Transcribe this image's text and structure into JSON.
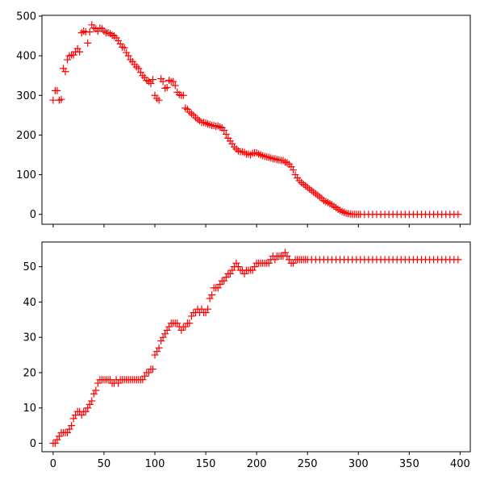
{
  "colors": {
    "marker": "#ff0000",
    "axes": "#000000",
    "background": "#ffffff"
  },
  "chart_data": [
    {
      "type": "scatter",
      "marker": "+",
      "grid": false,
      "xlim": [
        -11,
        410
      ],
      "ylim": [
        -25,
        502
      ],
      "xticks": [
        0,
        50,
        100,
        150,
        200,
        250,
        300,
        350,
        400
      ],
      "xtick_labels_visible": false,
      "yticks": [
        0,
        100,
        200,
        300,
        400,
        500
      ],
      "ytick_labels": [
        "0",
        "100",
        "200",
        "300",
        "400",
        "500"
      ],
      "points": [
        [
          0,
          288
        ],
        [
          2,
          312
        ],
        [
          4,
          312
        ],
        [
          6,
          288
        ],
        [
          8,
          290
        ],
        [
          10,
          368
        ],
        [
          12,
          360
        ],
        [
          14,
          390
        ],
        [
          16,
          400
        ],
        [
          18,
          402
        ],
        [
          20,
          402
        ],
        [
          22,
          410
        ],
        [
          24,
          418
        ],
        [
          26,
          410
        ],
        [
          28,
          458
        ],
        [
          30,
          462
        ],
        [
          32,
          460
        ],
        [
          34,
          432
        ],
        [
          36,
          460
        ],
        [
          38,
          478
        ],
        [
          40,
          470
        ],
        [
          42,
          468
        ],
        [
          44,
          462
        ],
        [
          46,
          470
        ],
        [
          48,
          468
        ],
        [
          50,
          462
        ],
        [
          52,
          458
        ],
        [
          54,
          458
        ],
        [
          56,
          456
        ],
        [
          58,
          452
        ],
        [
          60,
          450
        ],
        [
          62,
          445
        ],
        [
          64,
          438
        ],
        [
          66,
          430
        ],
        [
          68,
          422
        ],
        [
          70,
          420
        ],
        [
          72,
          408
        ],
        [
          74,
          400
        ],
        [
          76,
          390
        ],
        [
          78,
          385
        ],
        [
          80,
          378
        ],
        [
          82,
          372
        ],
        [
          84,
          368
        ],
        [
          86,
          358
        ],
        [
          88,
          350
        ],
        [
          90,
          345
        ],
        [
          92,
          338
        ],
        [
          94,
          335
        ],
        [
          96,
          330
        ],
        [
          98,
          340
        ],
        [
          100,
          300
        ],
        [
          102,
          292
        ],
        [
          104,
          288
        ],
        [
          106,
          342
        ],
        [
          108,
          335
        ],
        [
          110,
          318
        ],
        [
          112,
          320
        ],
        [
          114,
          338
        ],
        [
          116,
          335
        ],
        [
          118,
          335
        ],
        [
          120,
          325
        ],
        [
          122,
          308
        ],
        [
          124,
          302
        ],
        [
          126,
          300
        ],
        [
          128,
          300
        ],
        [
          130,
          268
        ],
        [
          132,
          265
        ],
        [
          134,
          258
        ],
        [
          136,
          254
        ],
        [
          138,
          250
        ],
        [
          140,
          244
        ],
        [
          142,
          240
        ],
        [
          144,
          236
        ],
        [
          146,
          232
        ],
        [
          148,
          232
        ],
        [
          150,
          230
        ],
        [
          152,
          228
        ],
        [
          154,
          226
        ],
        [
          156,
          224
        ],
        [
          158,
          224
        ],
        [
          160,
          222
        ],
        [
          162,
          223
        ],
        [
          164,
          220
        ],
        [
          166,
          218
        ],
        [
          168,
          212
        ],
        [
          170,
          202
        ],
        [
          172,
          192
        ],
        [
          174,
          185
        ],
        [
          176,
          178
        ],
        [
          178,
          170
        ],
        [
          180,
          165
        ],
        [
          182,
          160
        ],
        [
          184,
          158
        ],
        [
          186,
          158
        ],
        [
          188,
          156
        ],
        [
          190,
          152
        ],
        [
          192,
          152
        ],
        [
          194,
          150
        ],
        [
          196,
          154
        ],
        [
          198,
          155
        ],
        [
          200,
          155
        ],
        [
          202,
          152
        ],
        [
          204,
          150
        ],
        [
          206,
          148
        ],
        [
          208,
          146
        ],
        [
          210,
          145
        ],
        [
          212,
          144
        ],
        [
          214,
          142
        ],
        [
          216,
          140
        ],
        [
          218,
          140
        ],
        [
          220,
          138
        ],
        [
          222,
          137
        ],
        [
          224,
          136
        ],
        [
          226,
          136
        ],
        [
          228,
          132
        ],
        [
          230,
          130
        ],
        [
          232,
          126
        ],
        [
          234,
          120
        ],
        [
          236,
          112
        ],
        [
          238,
          100
        ],
        [
          240,
          92
        ],
        [
          242,
          85
        ],
        [
          244,
          80
        ],
        [
          246,
          76
        ],
        [
          248,
          72
        ],
        [
          250,
          68
        ],
        [
          252,
          64
        ],
        [
          254,
          60
        ],
        [
          256,
          56
        ],
        [
          258,
          52
        ],
        [
          260,
          48
        ],
        [
          262,
          44
        ],
        [
          264,
          40
        ],
        [
          266,
          35
        ],
        [
          268,
          32
        ],
        [
          270,
          30
        ],
        [
          272,
          27
        ],
        [
          274,
          24
        ],
        [
          276,
          20
        ],
        [
          278,
          17
        ],
        [
          280,
          13
        ],
        [
          282,
          10
        ],
        [
          284,
          7
        ],
        [
          286,
          5
        ],
        [
          288,
          3
        ],
        [
          290,
          2
        ],
        [
          292,
          1
        ],
        [
          294,
          0
        ],
        [
          296,
          0
        ],
        [
          298,
          0
        ],
        [
          300,
          0
        ],
        [
          302,
          0
        ],
        [
          306,
          0
        ],
        [
          310,
          0
        ],
        [
          314,
          0
        ],
        [
          318,
          0
        ],
        [
          322,
          0
        ],
        [
          326,
          0
        ],
        [
          330,
          0
        ],
        [
          334,
          0
        ],
        [
          338,
          0
        ],
        [
          342,
          0
        ],
        [
          346,
          0
        ],
        [
          350,
          0
        ],
        [
          354,
          0
        ],
        [
          358,
          0
        ],
        [
          362,
          0
        ],
        [
          366,
          0
        ],
        [
          370,
          0
        ],
        [
          374,
          0
        ],
        [
          378,
          0
        ],
        [
          382,
          0
        ],
        [
          386,
          0
        ],
        [
          390,
          0
        ],
        [
          394,
          0
        ],
        [
          398,
          0
        ]
      ]
    },
    {
      "type": "scatter",
      "marker": "+",
      "grid": false,
      "xlim": [
        -11,
        410
      ],
      "ylim": [
        -2.4,
        57
      ],
      "xticks": [
        0,
        50,
        100,
        150,
        200,
        250,
        300,
        350,
        400
      ],
      "xtick_labels": [
        "0",
        "50",
        "100",
        "150",
        "200",
        "250",
        "300",
        "350",
        "400"
      ],
      "yticks": [
        0,
        10,
        20,
        30,
        40,
        50
      ],
      "ytick_labels": [
        "0",
        "10",
        "20",
        "30",
        "40",
        "50"
      ],
      "points": [
        [
          0,
          0
        ],
        [
          2,
          0
        ],
        [
          4,
          1
        ],
        [
          6,
          2
        ],
        [
          8,
          3
        ],
        [
          10,
          3
        ],
        [
          12,
          3
        ],
        [
          14,
          3
        ],
        [
          16,
          4
        ],
        [
          18,
          5
        ],
        [
          20,
          7
        ],
        [
          22,
          8
        ],
        [
          24,
          9
        ],
        [
          26,
          9
        ],
        [
          28,
          8
        ],
        [
          30,
          9
        ],
        [
          32,
          9
        ],
        [
          34,
          10
        ],
        [
          36,
          11
        ],
        [
          38,
          12
        ],
        [
          40,
          14
        ],
        [
          42,
          15
        ],
        [
          44,
          17
        ],
        [
          46,
          18
        ],
        [
          48,
          18
        ],
        [
          50,
          18
        ],
        [
          52,
          18
        ],
        [
          54,
          18
        ],
        [
          56,
          18
        ],
        [
          58,
          17
        ],
        [
          60,
          17
        ],
        [
          62,
          18
        ],
        [
          64,
          17
        ],
        [
          66,
          18
        ],
        [
          68,
          18
        ],
        [
          70,
          18
        ],
        [
          72,
          18
        ],
        [
          74,
          18
        ],
        [
          76,
          18
        ],
        [
          78,
          18
        ],
        [
          80,
          18
        ],
        [
          82,
          18
        ],
        [
          84,
          18
        ],
        [
          86,
          18
        ],
        [
          88,
          18
        ],
        [
          90,
          19
        ],
        [
          92,
          20
        ],
        [
          94,
          20
        ],
        [
          96,
          21
        ],
        [
          98,
          21
        ],
        [
          100,
          25
        ],
        [
          102,
          26
        ],
        [
          104,
          27
        ],
        [
          106,
          29
        ],
        [
          108,
          30
        ],
        [
          110,
          31
        ],
        [
          112,
          32
        ],
        [
          114,
          33
        ],
        [
          116,
          34
        ],
        [
          118,
          34
        ],
        [
          120,
          34
        ],
        [
          122,
          34
        ],
        [
          124,
          33
        ],
        [
          126,
          32
        ],
        [
          128,
          33
        ],
        [
          130,
          33
        ],
        [
          132,
          34
        ],
        [
          134,
          34
        ],
        [
          136,
          36
        ],
        [
          138,
          37
        ],
        [
          140,
          37
        ],
        [
          142,
          38
        ],
        [
          144,
          37
        ],
        [
          146,
          38
        ],
        [
          148,
          37
        ],
        [
          150,
          37
        ],
        [
          152,
          38
        ],
        [
          154,
          41
        ],
        [
          156,
          42
        ],
        [
          158,
          44
        ],
        [
          160,
          44
        ],
        [
          162,
          44
        ],
        [
          164,
          45
        ],
        [
          166,
          46
        ],
        [
          168,
          46
        ],
        [
          170,
          47
        ],
        [
          172,
          48
        ],
        [
          174,
          48
        ],
        [
          176,
          49
        ],
        [
          178,
          50
        ],
        [
          180,
          51
        ],
        [
          182,
          50
        ],
        [
          184,
          49
        ],
        [
          186,
          49
        ],
        [
          188,
          48
        ],
        [
          190,
          49
        ],
        [
          192,
          49
        ],
        [
          194,
          49
        ],
        [
          196,
          49
        ],
        [
          198,
          50
        ],
        [
          200,
          51
        ],
        [
          202,
          51
        ],
        [
          204,
          51
        ],
        [
          206,
          51
        ],
        [
          208,
          51
        ],
        [
          210,
          51
        ],
        [
          212,
          51
        ],
        [
          214,
          52
        ],
        [
          216,
          53
        ],
        [
          218,
          52
        ],
        [
          220,
          53
        ],
        [
          222,
          53
        ],
        [
          224,
          53
        ],
        [
          226,
          53
        ],
        [
          228,
          54
        ],
        [
          230,
          53
        ],
        [
          232,
          52
        ],
        [
          234,
          51
        ],
        [
          236,
          51
        ],
        [
          238,
          52
        ],
        [
          240,
          52
        ],
        [
          242,
          52
        ],
        [
          244,
          52
        ],
        [
          246,
          52
        ],
        [
          248,
          52
        ],
        [
          250,
          52
        ],
        [
          254,
          52
        ],
        [
          258,
          52
        ],
        [
          262,
          52
        ],
        [
          266,
          52
        ],
        [
          270,
          52
        ],
        [
          274,
          52
        ],
        [
          278,
          52
        ],
        [
          282,
          52
        ],
        [
          286,
          52
        ],
        [
          290,
          52
        ],
        [
          294,
          52
        ],
        [
          298,
          52
        ],
        [
          302,
          52
        ],
        [
          306,
          52
        ],
        [
          310,
          52
        ],
        [
          314,
          52
        ],
        [
          318,
          52
        ],
        [
          322,
          52
        ],
        [
          326,
          52
        ],
        [
          330,
          52
        ],
        [
          334,
          52
        ],
        [
          338,
          52
        ],
        [
          342,
          52
        ],
        [
          346,
          52
        ],
        [
          350,
          52
        ],
        [
          354,
          52
        ],
        [
          358,
          52
        ],
        [
          362,
          52
        ],
        [
          366,
          52
        ],
        [
          370,
          52
        ],
        [
          374,
          52
        ],
        [
          378,
          52
        ],
        [
          382,
          52
        ],
        [
          386,
          52
        ],
        [
          390,
          52
        ],
        [
          394,
          52
        ],
        [
          398,
          52
        ]
      ]
    }
  ]
}
